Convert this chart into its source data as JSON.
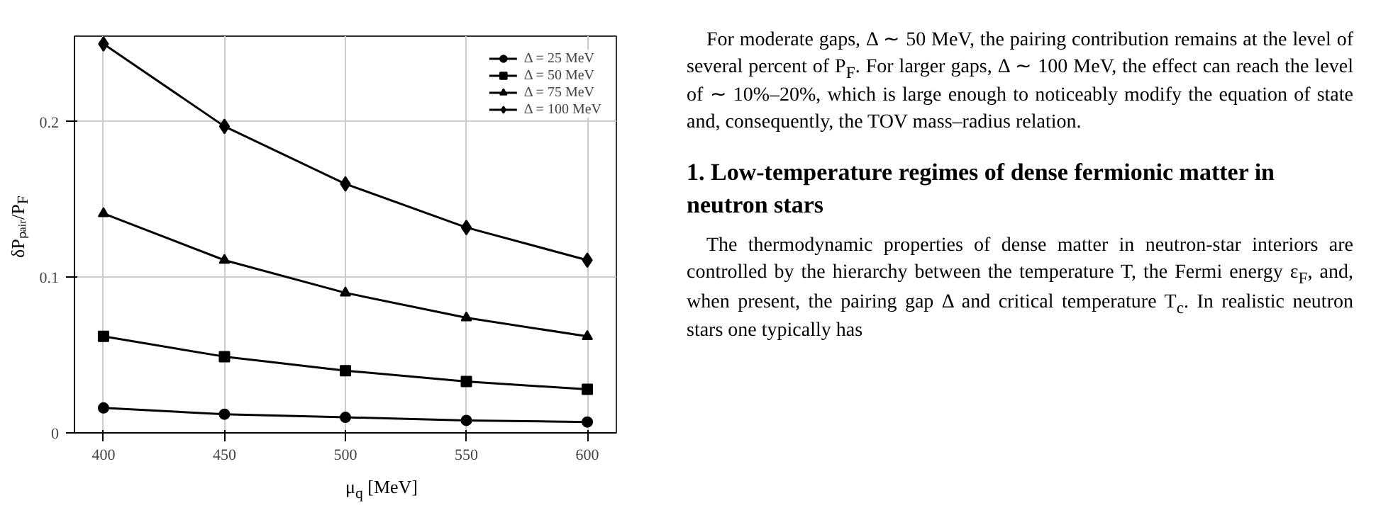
{
  "chart_data": {
    "type": "line",
    "xlabel": "μ$_{q}$ [MeV]",
    "ylabel": "δPₚₐᵢᵣ/P$_{F}$",
    "x": [
      400,
      450,
      500,
      550,
      600
    ],
    "series": [
      {
        "name": "Δ = 25 MeV",
        "color": "#000000",
        "marker": "circle",
        "values": [
          0.016,
          0.012,
          0.01,
          0.008,
          0.007
        ]
      },
      {
        "name": "Δ = 50 MeV",
        "color": "#000000",
        "marker": "square",
        "values": [
          0.062,
          0.049,
          0.04,
          0.033,
          0.028
        ]
      },
      {
        "name": "Δ = 75 MeV",
        "color": "#000000",
        "marker": "triangle",
        "values": [
          0.141,
          0.111,
          0.09,
          0.074,
          0.062
        ]
      },
      {
        "name": "Δ = 100 MeV",
        "color": "#000000",
        "marker": "diamond",
        "values": [
          0.25,
          0.197,
          0.16,
          0.132,
          0.111
        ]
      }
    ],
    "xlim": [
      388,
      612
    ],
    "ylim": [
      0,
      0.255
    ],
    "xticks": [
      400,
      450,
      500,
      550,
      600
    ],
    "yticks": [
      0,
      0.1,
      0.2
    ],
    "grid": true,
    "legend": "top right",
    "line_style": "solid",
    "annotations": [
      "For moderate gaps, Δ ∼ 50 MeV, the pairing contribution remains at the level of several percent of P$_{F}$. For larger gaps, Δ ∼ 100 MeV, the effect can reach the level of ∼ 10%–20%, which is large enough to noticeably modify the equation of state and, consequently, the TOV mass–radius relation.",
      "1. Low-temperature regimes of dense fermionic matter in neutron stars",
      "The thermodynamic properties of dense matter in neutron-star interiors are controlled by the hierarchy between the temperature T, the Fermi energy ε$_{F}$, and, when present, the pairing gap Δ and critical temperature T$_{c}$. In realistic neutron stars one typically has"
    ]
  }
}
